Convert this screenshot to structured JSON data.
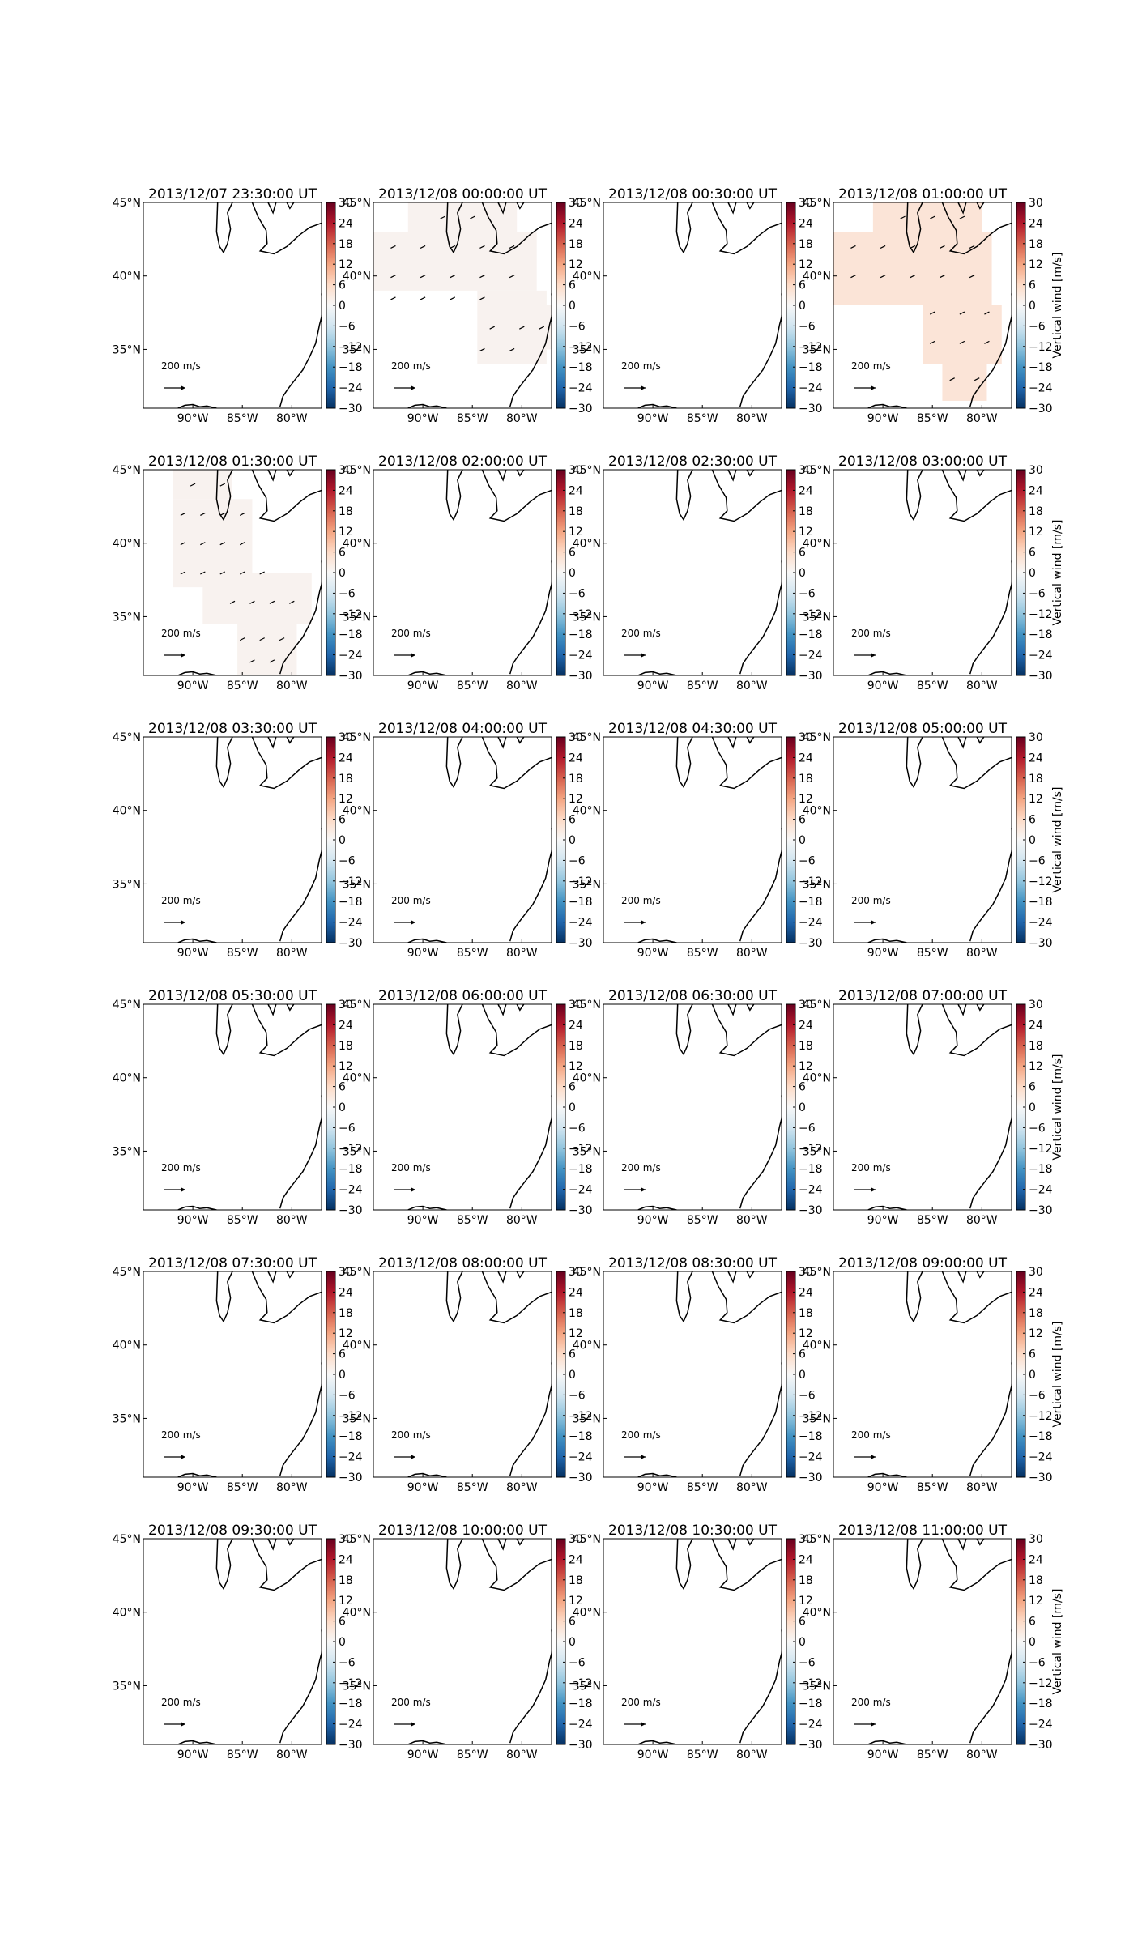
{
  "chart_data": {
    "type": "heatmap",
    "layout": {
      "rows": 6,
      "cols": 4
    },
    "colorbar": {
      "colormap": "RdBu_r",
      "range": [
        -30,
        30
      ],
      "ticks": [
        "30",
        "24",
        "18",
        "12",
        "6",
        "0",
        "−6",
        "−12",
        "−18",
        "−24",
        "−30"
      ],
      "label": "Vertical wind [m/s]",
      "colors": [
        "#053061",
        "#2166ac",
        "#4393c3",
        "#92c5de",
        "#d1e5f0",
        "#f7f7f7",
        "#fddbc7",
        "#f4a582",
        "#d6604d",
        "#b2182b",
        "#67001f"
      ]
    },
    "map": {
      "lon_range": [
        -95,
        -77
      ],
      "lat_range": [
        31,
        45
      ],
      "x_ticks": [
        "90°W",
        "85°W",
        "80°W"
      ],
      "y_ticks": [
        "45°N",
        "40°N",
        "35°N"
      ],
      "reference_vector": {
        "label": "200 m/s",
        "value": 200,
        "unit": "m/s"
      }
    },
    "panels": [
      {
        "title": "2013/12/07 23:30:00 UT",
        "field": "none"
      },
      {
        "title": "2013/12/08 00:00:00 UT",
        "field": "A",
        "vertical_wind": 1
      },
      {
        "title": "2013/12/08 00:30:00 UT",
        "field": "none"
      },
      {
        "title": "2013/12/08 01:00:00 UT",
        "field": "B",
        "vertical_wind": 4
      },
      {
        "title": "2013/12/08 01:30:00 UT",
        "field": "C",
        "vertical_wind": 1
      },
      {
        "title": "2013/12/08 02:00:00 UT",
        "field": "none"
      },
      {
        "title": "2013/12/08 02:30:00 UT",
        "field": "none"
      },
      {
        "title": "2013/12/08 03:00:00 UT",
        "field": "none"
      },
      {
        "title": "2013/12/08 03:30:00 UT",
        "field": "none"
      },
      {
        "title": "2013/12/08 04:00:00 UT",
        "field": "none"
      },
      {
        "title": "2013/12/08 04:30:00 UT",
        "field": "none"
      },
      {
        "title": "2013/12/08 05:00:00 UT",
        "field": "none"
      },
      {
        "title": "2013/12/08 05:30:00 UT",
        "field": "none"
      },
      {
        "title": "2013/12/08 06:00:00 UT",
        "field": "none"
      },
      {
        "title": "2013/12/08 06:30:00 UT",
        "field": "none"
      },
      {
        "title": "2013/12/08 07:00:00 UT",
        "field": "none"
      },
      {
        "title": "2013/12/08 07:30:00 UT",
        "field": "none"
      },
      {
        "title": "2013/12/08 08:00:00 UT",
        "field": "none"
      },
      {
        "title": "2013/12/08 08:30:00 UT",
        "field": "none"
      },
      {
        "title": "2013/12/08 09:00:00 UT",
        "field": "none"
      },
      {
        "title": "2013/12/08 09:30:00 UT",
        "field": "none"
      },
      {
        "title": "2013/12/08 10:00:00 UT",
        "field": "none"
      },
      {
        "title": "2013/12/08 10:30:00 UT",
        "field": "none"
      },
      {
        "title": "2013/12/08 11:00:00 UT",
        "field": "none"
      }
    ],
    "fields": {
      "A": {
        "regions": [
          {
            "lon": [
              -91.5,
              -80.5
            ],
            "lat": [
              42.5,
              45
            ]
          },
          {
            "lon": [
              -95,
              -78.5
            ],
            "lat": [
              39,
              43
            ]
          },
          {
            "lon": [
              -84.5,
              -77.5
            ],
            "lat": [
              34,
              39
            ]
          },
          {
            "lon": [
              -79,
              -77
            ],
            "lat": [
              35,
              38
            ]
          }
        ],
        "vectors": [
          {
            "lon": -88,
            "lat": 44
          },
          {
            "lon": -85,
            "lat": 44
          },
          {
            "lon": -93,
            "lat": 42
          },
          {
            "lon": -90,
            "lat": 42
          },
          {
            "lon": -87,
            "lat": 42
          },
          {
            "lon": -84,
            "lat": 42
          },
          {
            "lon": -81,
            "lat": 42
          },
          {
            "lon": -93,
            "lat": 40
          },
          {
            "lon": -90,
            "lat": 40
          },
          {
            "lon": -87,
            "lat": 40
          },
          {
            "lon": -84,
            "lat": 40
          },
          {
            "lon": -81,
            "lat": 40
          },
          {
            "lon": -93,
            "lat": 38.5
          },
          {
            "lon": -90,
            "lat": 38.5
          },
          {
            "lon": -87,
            "lat": 38.5
          },
          {
            "lon": -84,
            "lat": 38.5
          },
          {
            "lon": -83,
            "lat": 36.5
          },
          {
            "lon": -80,
            "lat": 36.5
          },
          {
            "lon": -78,
            "lat": 36.5
          },
          {
            "lon": -84,
            "lat": 35
          },
          {
            "lon": -81,
            "lat": 35
          }
        ]
      },
      "B": {
        "regions": [
          {
            "lon": [
              -91,
              -80
            ],
            "lat": [
              43,
              45
            ]
          },
          {
            "lon": [
              -95,
              -79
            ],
            "lat": [
              38,
              43
            ]
          },
          {
            "lon": [
              -86,
              -78
            ],
            "lat": [
              34,
              38
            ]
          },
          {
            "lon": [
              -84,
              -79.5
            ],
            "lat": [
              31.5,
              34
            ]
          }
        ],
        "vectors": [
          {
            "lon": -88,
            "lat": 44
          },
          {
            "lon": -85,
            "lat": 44
          },
          {
            "lon": -82,
            "lat": 44
          },
          {
            "lon": -93,
            "lat": 42
          },
          {
            "lon": -90,
            "lat": 42
          },
          {
            "lon": -87,
            "lat": 42
          },
          {
            "lon": -84,
            "lat": 42
          },
          {
            "lon": -81,
            "lat": 42
          },
          {
            "lon": -93,
            "lat": 40
          },
          {
            "lon": -90,
            "lat": 40
          },
          {
            "lon": -87,
            "lat": 40
          },
          {
            "lon": -84,
            "lat": 40
          },
          {
            "lon": -81,
            "lat": 40
          },
          {
            "lon": -85,
            "lat": 37.5
          },
          {
            "lon": -82,
            "lat": 37.5
          },
          {
            "lon": -79.5,
            "lat": 37.5
          },
          {
            "lon": -85,
            "lat": 35.5
          },
          {
            "lon": -82,
            "lat": 35.5
          },
          {
            "lon": -79.5,
            "lat": 35.5
          },
          {
            "lon": -83,
            "lat": 33
          },
          {
            "lon": -80.5,
            "lat": 33
          }
        ]
      },
      "C": {
        "regions": [
          {
            "lon": [
              -92,
              -86
            ],
            "lat": [
              43,
              45
            ]
          },
          {
            "lon": [
              -92,
              -84
            ],
            "lat": [
              37,
              43
            ]
          },
          {
            "lon": [
              -89,
              -78
            ],
            "lat": [
              34.5,
              38
            ]
          },
          {
            "lon": [
              -85.5,
              -79.5
            ],
            "lat": [
              31,
              34.5
            ]
          }
        ],
        "vectors": [
          {
            "lon": -90,
            "lat": 44
          },
          {
            "lon": -87,
            "lat": 44
          },
          {
            "lon": -91,
            "lat": 42
          },
          {
            "lon": -89,
            "lat": 42
          },
          {
            "lon": -87,
            "lat": 42
          },
          {
            "lon": -85,
            "lat": 42
          },
          {
            "lon": -91,
            "lat": 40
          },
          {
            "lon": -89,
            "lat": 40
          },
          {
            "lon": -87,
            "lat": 40
          },
          {
            "lon": -85,
            "lat": 40
          },
          {
            "lon": -91,
            "lat": 38
          },
          {
            "lon": -89,
            "lat": 38
          },
          {
            "lon": -87,
            "lat": 38
          },
          {
            "lon": -85,
            "lat": 38
          },
          {
            "lon": -83,
            "lat": 38
          },
          {
            "lon": -86,
            "lat": 36
          },
          {
            "lon": -84,
            "lat": 36
          },
          {
            "lon": -82,
            "lat": 36
          },
          {
            "lon": -80,
            "lat": 36
          },
          {
            "lon": -85,
            "lat": 33.5
          },
          {
            "lon": -83,
            "lat": 33.5
          },
          {
            "lon": -81,
            "lat": 33.5
          },
          {
            "lon": -84,
            "lat": 32
          },
          {
            "lon": -82,
            "lat": 32
          }
        ]
      }
    }
  }
}
